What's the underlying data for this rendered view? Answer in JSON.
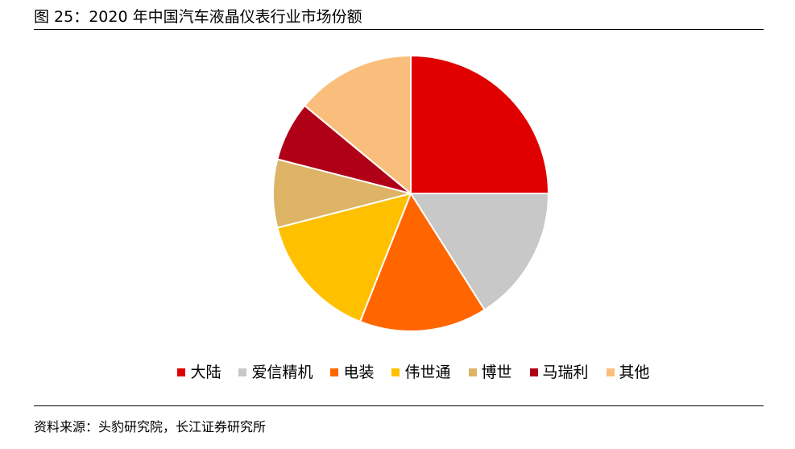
{
  "title": "图 25：2020 年中国汽车液晶仪表行业市场份额",
  "source": "资料来源：头豹研究院，长江证券研究所",
  "chart_data": {
    "type": "pie",
    "categories": [
      "大陆",
      "爱信精机",
      "电装",
      "伟世通",
      "博世",
      "马瑞利",
      "其他"
    ],
    "values": [
      25,
      16,
      15,
      15,
      8,
      7,
      14
    ],
    "colors": [
      "#E00000",
      "#C8C8C8",
      "#FF6600",
      "#FFC000",
      "#DDB366",
      "#B00018",
      "#FABE7C"
    ],
    "start": "12 o'clock",
    "direction": "clockwise",
    "legend_position": "bottom"
  }
}
